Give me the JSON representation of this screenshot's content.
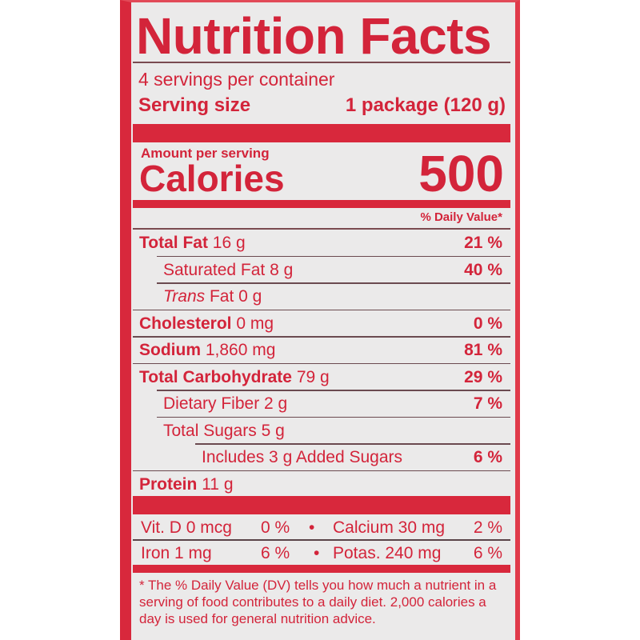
{
  "title": "Nutrition Facts",
  "servings_per_container": "4 servings per container",
  "serving_size_label": "Serving size",
  "serving_size_value": "1 package (120 g)",
  "amount_per_serving": "Amount per serving",
  "calories_label": "Calories",
  "calories_value": "500",
  "dv_header": "% Daily Value*",
  "nutrients": [
    {
      "name": "Total Fat",
      "amount": "16 g",
      "dv": "21 %",
      "bold": true,
      "indent": 0
    },
    {
      "name": "Saturated Fat",
      "amount": "8 g",
      "dv": "40 %",
      "bold": false,
      "indent": 1
    },
    {
      "name": "Trans",
      "name_suffix": "Fat",
      "amount": "0 g",
      "dv": "",
      "bold": false,
      "indent": 1,
      "italic_prefix": true
    },
    {
      "name": "Cholesterol",
      "amount": "0 mg",
      "dv": "0 %",
      "bold": true,
      "indent": 0
    },
    {
      "name": "Sodium",
      "amount": "1,860 mg",
      "dv": "81 %",
      "bold": true,
      "indent": 0
    },
    {
      "name": "Total Carbohydrate",
      "amount": "79 g",
      "dv": "29 %",
      "bold": true,
      "indent": 0
    },
    {
      "name": "Dietary Fiber",
      "amount": "2 g",
      "dv": "7 %",
      "bold": false,
      "indent": 1
    },
    {
      "name": "Total Sugars",
      "amount": "5 g",
      "dv": "",
      "bold": false,
      "indent": 1
    },
    {
      "name": "Includes 3 g Added Sugars",
      "amount": "",
      "dv": "6 %",
      "bold": false,
      "indent": 2
    },
    {
      "name": "Protein",
      "amount": "11 g",
      "dv": "",
      "bold": true,
      "indent": 0
    }
  ],
  "minerals": [
    {
      "left_name": "Vit. D 0 mcg",
      "left_dv": "0 %",
      "right_name": "Calcium 30 mg",
      "right_dv": "2 %"
    },
    {
      "left_name": "Iron 1 mg",
      "left_dv": "6 %",
      "right_name": "Potas. 240 mg",
      "right_dv": "6 %"
    }
  ],
  "bullet": "•",
  "footnote": "* The % Daily Value (DV) tells you how much a nutrient in a serving of food contributes to a daily diet. 2,000 calories a day is used for general nutrition advice.",
  "colors": {
    "ink": "#d3243a",
    "bar": "#d8283c",
    "background": "#ebeaea"
  }
}
